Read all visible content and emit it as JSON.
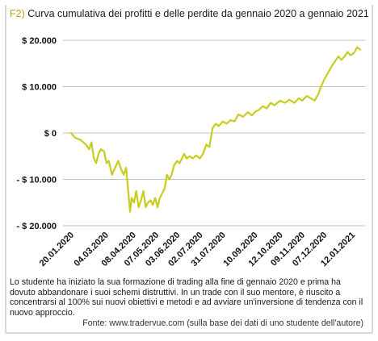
{
  "figure": {
    "code": "F2)",
    "title": "Curva cumulativa dei profitti e delle perdite da gennaio 2020 a gennaio 2021",
    "caption": "Lo studente ha iniziato la sua formazione di trading alla fine di gennaio 2020 e prima ha dovuto abbandonare i suoi schemi distruttivi. In un trade con il suo mentore, è riuscito a concentrarsi al 100% sui nuovi obiettivi e metodi e ad avviare un'inversione di tendenza con il nuovo approccio.",
    "source": "Fonte: www.tradervue.com (sulla base dei dati di uno studente dell'autore)"
  },
  "colors": {
    "line": "#c8cc1e",
    "grid": "#bfbfbf",
    "code": "#b7a91f"
  },
  "chart_data": {
    "type": "line",
    "title": "Curva cumulativa dei profitti e delle perdite da gennaio 2020 a gennaio 2021",
    "xlabel": "",
    "ylabel": "",
    "x_range": [
      "2020-01-20",
      "2021-01-22"
    ],
    "ylim": [
      -20000,
      20000
    ],
    "y_ticks": [
      20000,
      10000,
      0,
      -10000,
      -20000
    ],
    "y_tick_labels": [
      "$ 20.000",
      "$ 10.000",
      "$ 0",
      "- $ 10.000",
      "- $ 20.000"
    ],
    "x_ticks": [
      "2020-01-20",
      "2020-03-04",
      "2020-04-08",
      "2020-05-07",
      "2020-06-03",
      "2020-07-02",
      "2020-07-31",
      "2020-09-10",
      "2020-10-12",
      "2020-11-09",
      "2020-12-07",
      "2021-01-12"
    ],
    "x_tick_labels": [
      "20.01.2020",
      "04.03.2020",
      "08.04.2020",
      "07.05.2020",
      "03.06.2020",
      "02.07.2020",
      "31.07.2020",
      "10.09.2020",
      "12.10.2020",
      "09.11.2020",
      "07.12.2020",
      "12.01.2021"
    ],
    "grid": true,
    "legend": "none",
    "series": [
      {
        "x": [
          "2020-01-20",
          "2020-01-25",
          "2020-02-01",
          "2020-02-08",
          "2020-02-12",
          "2020-02-15",
          "2020-02-18",
          "2020-02-21",
          "2020-02-24",
          "2020-02-27",
          "2020-03-02",
          "2020-03-05",
          "2020-03-08",
          "2020-03-12",
          "2020-03-16",
          "2020-03-20",
          "2020-03-24",
          "2020-03-27",
          "2020-03-30",
          "2020-04-01",
          "2020-04-04",
          "2020-04-06",
          "2020-04-09",
          "2020-04-12",
          "2020-04-15",
          "2020-04-18",
          "2020-04-21",
          "2020-04-24",
          "2020-04-27",
          "2020-04-30",
          "2020-05-03",
          "2020-05-06",
          "2020-05-09",
          "2020-05-12",
          "2020-05-15",
          "2020-05-18",
          "2020-05-21",
          "2020-05-24",
          "2020-05-27",
          "2020-05-30",
          "2020-06-03",
          "2020-06-06",
          "2020-06-09",
          "2020-06-12",
          "2020-06-15",
          "2020-06-19",
          "2020-06-23",
          "2020-06-27",
          "2020-07-02",
          "2020-07-06",
          "2020-07-10",
          "2020-07-14",
          "2020-07-18",
          "2020-07-22",
          "2020-07-26",
          "2020-07-31",
          "2020-08-05",
          "2020-08-10",
          "2020-08-15",
          "2020-08-20",
          "2020-08-26",
          "2020-09-01",
          "2020-09-06",
          "2020-09-10",
          "2020-09-15",
          "2020-09-20",
          "2020-09-25",
          "2020-09-30",
          "2020-10-05",
          "2020-10-12",
          "2020-10-18",
          "2020-10-24",
          "2020-10-30",
          "2020-11-05",
          "2020-11-09",
          "2020-11-15",
          "2020-11-20",
          "2020-11-25",
          "2020-11-30",
          "2020-12-03",
          "2020-12-07",
          "2020-12-12",
          "2020-12-17",
          "2020-12-21",
          "2020-12-25",
          "2020-12-29",
          "2021-01-02",
          "2021-01-06",
          "2021-01-09",
          "2021-01-12",
          "2021-01-15",
          "2021-01-18",
          "2021-01-22"
        ],
        "y": [
          0,
          -1000,
          -1500,
          -2500,
          -3500,
          -2000,
          -5500,
          -6500,
          -4500,
          -3500,
          -4000,
          -6500,
          -6000,
          -9000,
          -7500,
          -6000,
          -8000,
          -9000,
          -7500,
          -11000,
          -17000,
          -14000,
          -15000,
          -12500,
          -16000,
          -14500,
          -12500,
          -16000,
          -15000,
          -14500,
          -15500,
          -14000,
          -16000,
          -14000,
          -13000,
          -12000,
          -9000,
          -10000,
          -9000,
          -7000,
          -6000,
          -6500,
          -5500,
          -4500,
          -5500,
          -5000,
          -5500,
          -4800,
          -5500,
          -4500,
          -2500,
          -3000,
          1000,
          2000,
          1500,
          2500,
          2000,
          2800,
          2500,
          4000,
          3500,
          4500,
          3800,
          4500,
          5000,
          5800,
          5300,
          6500,
          6000,
          7000,
          6500,
          7200,
          6500,
          7500,
          7000,
          8000,
          7500,
          7000,
          8500,
          10000,
          11500,
          13000,
          14500,
          15500,
          16500,
          15800,
          16500,
          17500,
          16800,
          17000,
          17500,
          18500,
          18000
        ]
      }
    ]
  }
}
